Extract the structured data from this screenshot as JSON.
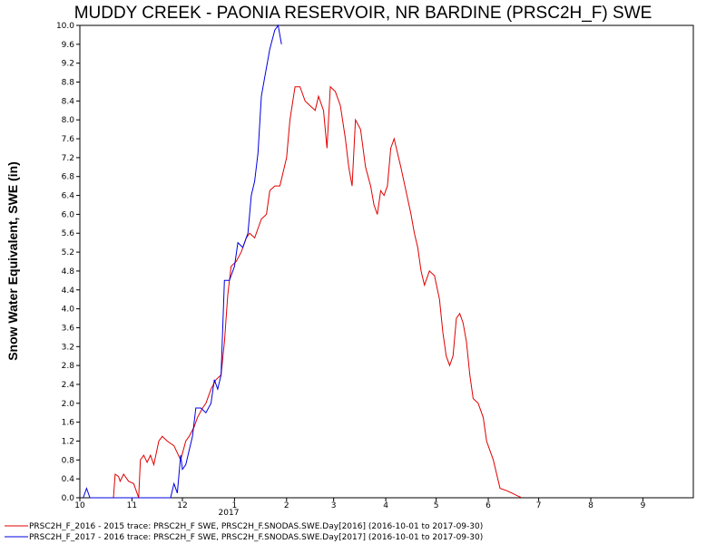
{
  "chart_data": {
    "type": "line",
    "title": "MUDDY CREEK - PAONIA RESERVOIR, NR BARDINE (PRSC2H_F) SWE",
    "ylabel": "Snow Water Equivalent, SWE (in)",
    "xlabel": "",
    "ylim": [
      0,
      10
    ],
    "y_ticks": [
      "0.0",
      "0.4",
      "0.8",
      "1.2",
      "1.6",
      "2.0",
      "2.4",
      "2.8",
      "3.2",
      "3.6",
      "4.0",
      "4.4",
      "4.8",
      "5.2",
      "5.6",
      "6.0",
      "6.4",
      "6.8",
      "7.2",
      "7.6",
      "8.0",
      "8.4",
      "8.8",
      "9.2",
      "9.6",
      "10.0"
    ],
    "x_ticks": [
      "10",
      "11",
      "12",
      "1",
      "2",
      "3",
      "4",
      "5",
      "6",
      "7",
      "8",
      "9"
    ],
    "x_year_label": "2017",
    "x_domain": [
      "2016-10-01",
      "2017-09-30"
    ],
    "grid": false,
    "legend_position": "bottom-left",
    "series": [
      {
        "name": "PRSC2H_F_2016 - 2015 trace: PRSC2H_F SWE, PRSC2H_F.SNODAS.SWE.Day[2016] (2016-10-01 to 2017-09-30)",
        "color": "#e00000",
        "points": [
          [
            "2016-10-21",
            0.0
          ],
          [
            "2016-10-22",
            0.5
          ],
          [
            "2016-10-24",
            0.45
          ],
          [
            "2016-10-25",
            0.35
          ],
          [
            "2016-10-27",
            0.5
          ],
          [
            "2016-10-30",
            0.35
          ],
          [
            "2016-11-02",
            0.3
          ],
          [
            "2016-11-05",
            0.0
          ],
          [
            "2016-11-06",
            0.8
          ],
          [
            "2016-11-08",
            0.9
          ],
          [
            "2016-11-10",
            0.75
          ],
          [
            "2016-11-12",
            0.9
          ],
          [
            "2016-11-14",
            0.7
          ],
          [
            "2016-11-17",
            1.2
          ],
          [
            "2016-11-19",
            1.3
          ],
          [
            "2016-11-22",
            1.2
          ],
          [
            "2016-11-26",
            1.1
          ],
          [
            "2016-11-30",
            0.8
          ],
          [
            "2016-12-03",
            1.2
          ],
          [
            "2016-12-05",
            1.3
          ],
          [
            "2016-12-08",
            1.5
          ],
          [
            "2016-12-10",
            1.7
          ],
          [
            "2016-12-13",
            1.9
          ],
          [
            "2016-12-15",
            2.0
          ],
          [
            "2016-12-18",
            2.3
          ],
          [
            "2016-12-21",
            2.5
          ],
          [
            "2016-12-24",
            2.6
          ],
          [
            "2016-12-26",
            3.3
          ],
          [
            "2016-12-28",
            4.3
          ],
          [
            "2016-12-30",
            4.9
          ],
          [
            "2017-01-02",
            5.0
          ],
          [
            "2017-01-05",
            5.2
          ],
          [
            "2017-01-08",
            5.5
          ],
          [
            "2017-01-10",
            5.6
          ],
          [
            "2017-01-13",
            5.5
          ],
          [
            "2017-01-17",
            5.9
          ],
          [
            "2017-01-20",
            6.0
          ],
          [
            "2017-01-22",
            6.5
          ],
          [
            "2017-01-25",
            6.6
          ],
          [
            "2017-01-28",
            6.6
          ],
          [
            "2017-02-01",
            7.2
          ],
          [
            "2017-02-03",
            8.0
          ],
          [
            "2017-02-06",
            8.7
          ],
          [
            "2017-02-09",
            8.7
          ],
          [
            "2017-02-12",
            8.4
          ],
          [
            "2017-02-15",
            8.3
          ],
          [
            "2017-02-18",
            8.2
          ],
          [
            "2017-02-20",
            8.5
          ],
          [
            "2017-02-23",
            8.2
          ],
          [
            "2017-02-25",
            7.4
          ],
          [
            "2017-02-27",
            8.7
          ],
          [
            "2017-03-02",
            8.6
          ],
          [
            "2017-03-05",
            8.3
          ],
          [
            "2017-03-08",
            7.6
          ],
          [
            "2017-03-10",
            7.0
          ],
          [
            "2017-03-12",
            6.6
          ],
          [
            "2017-03-14",
            8.0
          ],
          [
            "2017-03-17",
            7.8
          ],
          [
            "2017-03-20",
            7.0
          ],
          [
            "2017-03-23",
            6.6
          ],
          [
            "2017-03-25",
            6.2
          ],
          [
            "2017-03-27",
            6.0
          ],
          [
            "2017-03-29",
            6.5
          ],
          [
            "2017-03-31",
            6.4
          ],
          [
            "2017-04-02",
            6.6
          ],
          [
            "2017-04-04",
            7.4
          ],
          [
            "2017-04-06",
            7.6
          ],
          [
            "2017-04-08",
            7.3
          ],
          [
            "2017-04-10",
            7.0
          ],
          [
            "2017-04-13",
            6.5
          ],
          [
            "2017-04-16",
            6.0
          ],
          [
            "2017-04-18",
            5.6
          ],
          [
            "2017-04-20",
            5.3
          ],
          [
            "2017-04-22",
            4.8
          ],
          [
            "2017-04-24",
            4.5
          ],
          [
            "2017-04-27",
            4.8
          ],
          [
            "2017-04-30",
            4.7
          ],
          [
            "2017-05-03",
            4.2
          ],
          [
            "2017-05-05",
            3.5
          ],
          [
            "2017-05-07",
            3.0
          ],
          [
            "2017-05-09",
            2.8
          ],
          [
            "2017-05-11",
            3.0
          ],
          [
            "2017-05-13",
            3.8
          ],
          [
            "2017-05-15",
            3.9
          ],
          [
            "2017-05-17",
            3.7
          ],
          [
            "2017-05-19",
            3.3
          ],
          [
            "2017-05-21",
            2.6
          ],
          [
            "2017-05-23",
            2.1
          ],
          [
            "2017-05-26",
            2.0
          ],
          [
            "2017-05-29",
            1.7
          ],
          [
            "2017-05-31",
            1.2
          ],
          [
            "2017-06-02",
            1.0
          ],
          [
            "2017-06-04",
            0.8
          ],
          [
            "2017-06-06",
            0.5
          ],
          [
            "2017-06-08",
            0.2
          ],
          [
            "2017-06-12",
            0.15
          ],
          [
            "2017-06-15",
            0.1
          ],
          [
            "2017-06-19",
            0.03
          ],
          [
            "2017-06-21",
            0.0
          ]
        ]
      },
      {
        "name": "PRSC2H_F_2017 - 2016 trace: PRSC2H_F SWE, PRSC2H_F.SNODAS.SWE.Day[2017] (2016-10-01 to 2017-09-30)",
        "color": "#0000e0",
        "points": [
          [
            "2016-10-03",
            0.0
          ],
          [
            "2016-10-05",
            0.2
          ],
          [
            "2016-10-07",
            0.0
          ],
          [
            "2016-11-24",
            0.0
          ],
          [
            "2016-11-26",
            0.3
          ],
          [
            "2016-11-28",
            0.1
          ],
          [
            "2016-11-30",
            0.9
          ],
          [
            "2016-12-01",
            0.6
          ],
          [
            "2016-12-03",
            0.7
          ],
          [
            "2016-12-05",
            1.0
          ],
          [
            "2016-12-07",
            1.3
          ],
          [
            "2016-12-09",
            1.9
          ],
          [
            "2016-12-12",
            1.9
          ],
          [
            "2016-12-15",
            1.8
          ],
          [
            "2016-12-18",
            2.0
          ],
          [
            "2016-12-20",
            2.5
          ],
          [
            "2016-12-22",
            2.3
          ],
          [
            "2016-12-24",
            2.6
          ],
          [
            "2016-12-26",
            4.6
          ],
          [
            "2016-12-29",
            4.6
          ],
          [
            "2017-01-01",
            4.9
          ],
          [
            "2017-01-03",
            5.4
          ],
          [
            "2017-01-06",
            5.3
          ],
          [
            "2017-01-09",
            5.6
          ],
          [
            "2017-01-11",
            6.4
          ],
          [
            "2017-01-13",
            6.7
          ],
          [
            "2017-01-15",
            7.3
          ],
          [
            "2017-01-17",
            8.5
          ],
          [
            "2017-01-19",
            8.9
          ],
          [
            "2017-01-22",
            9.5
          ],
          [
            "2017-01-25",
            9.9
          ],
          [
            "2017-01-27",
            10.0
          ],
          [
            "2017-01-29",
            9.6
          ]
        ]
      }
    ]
  }
}
